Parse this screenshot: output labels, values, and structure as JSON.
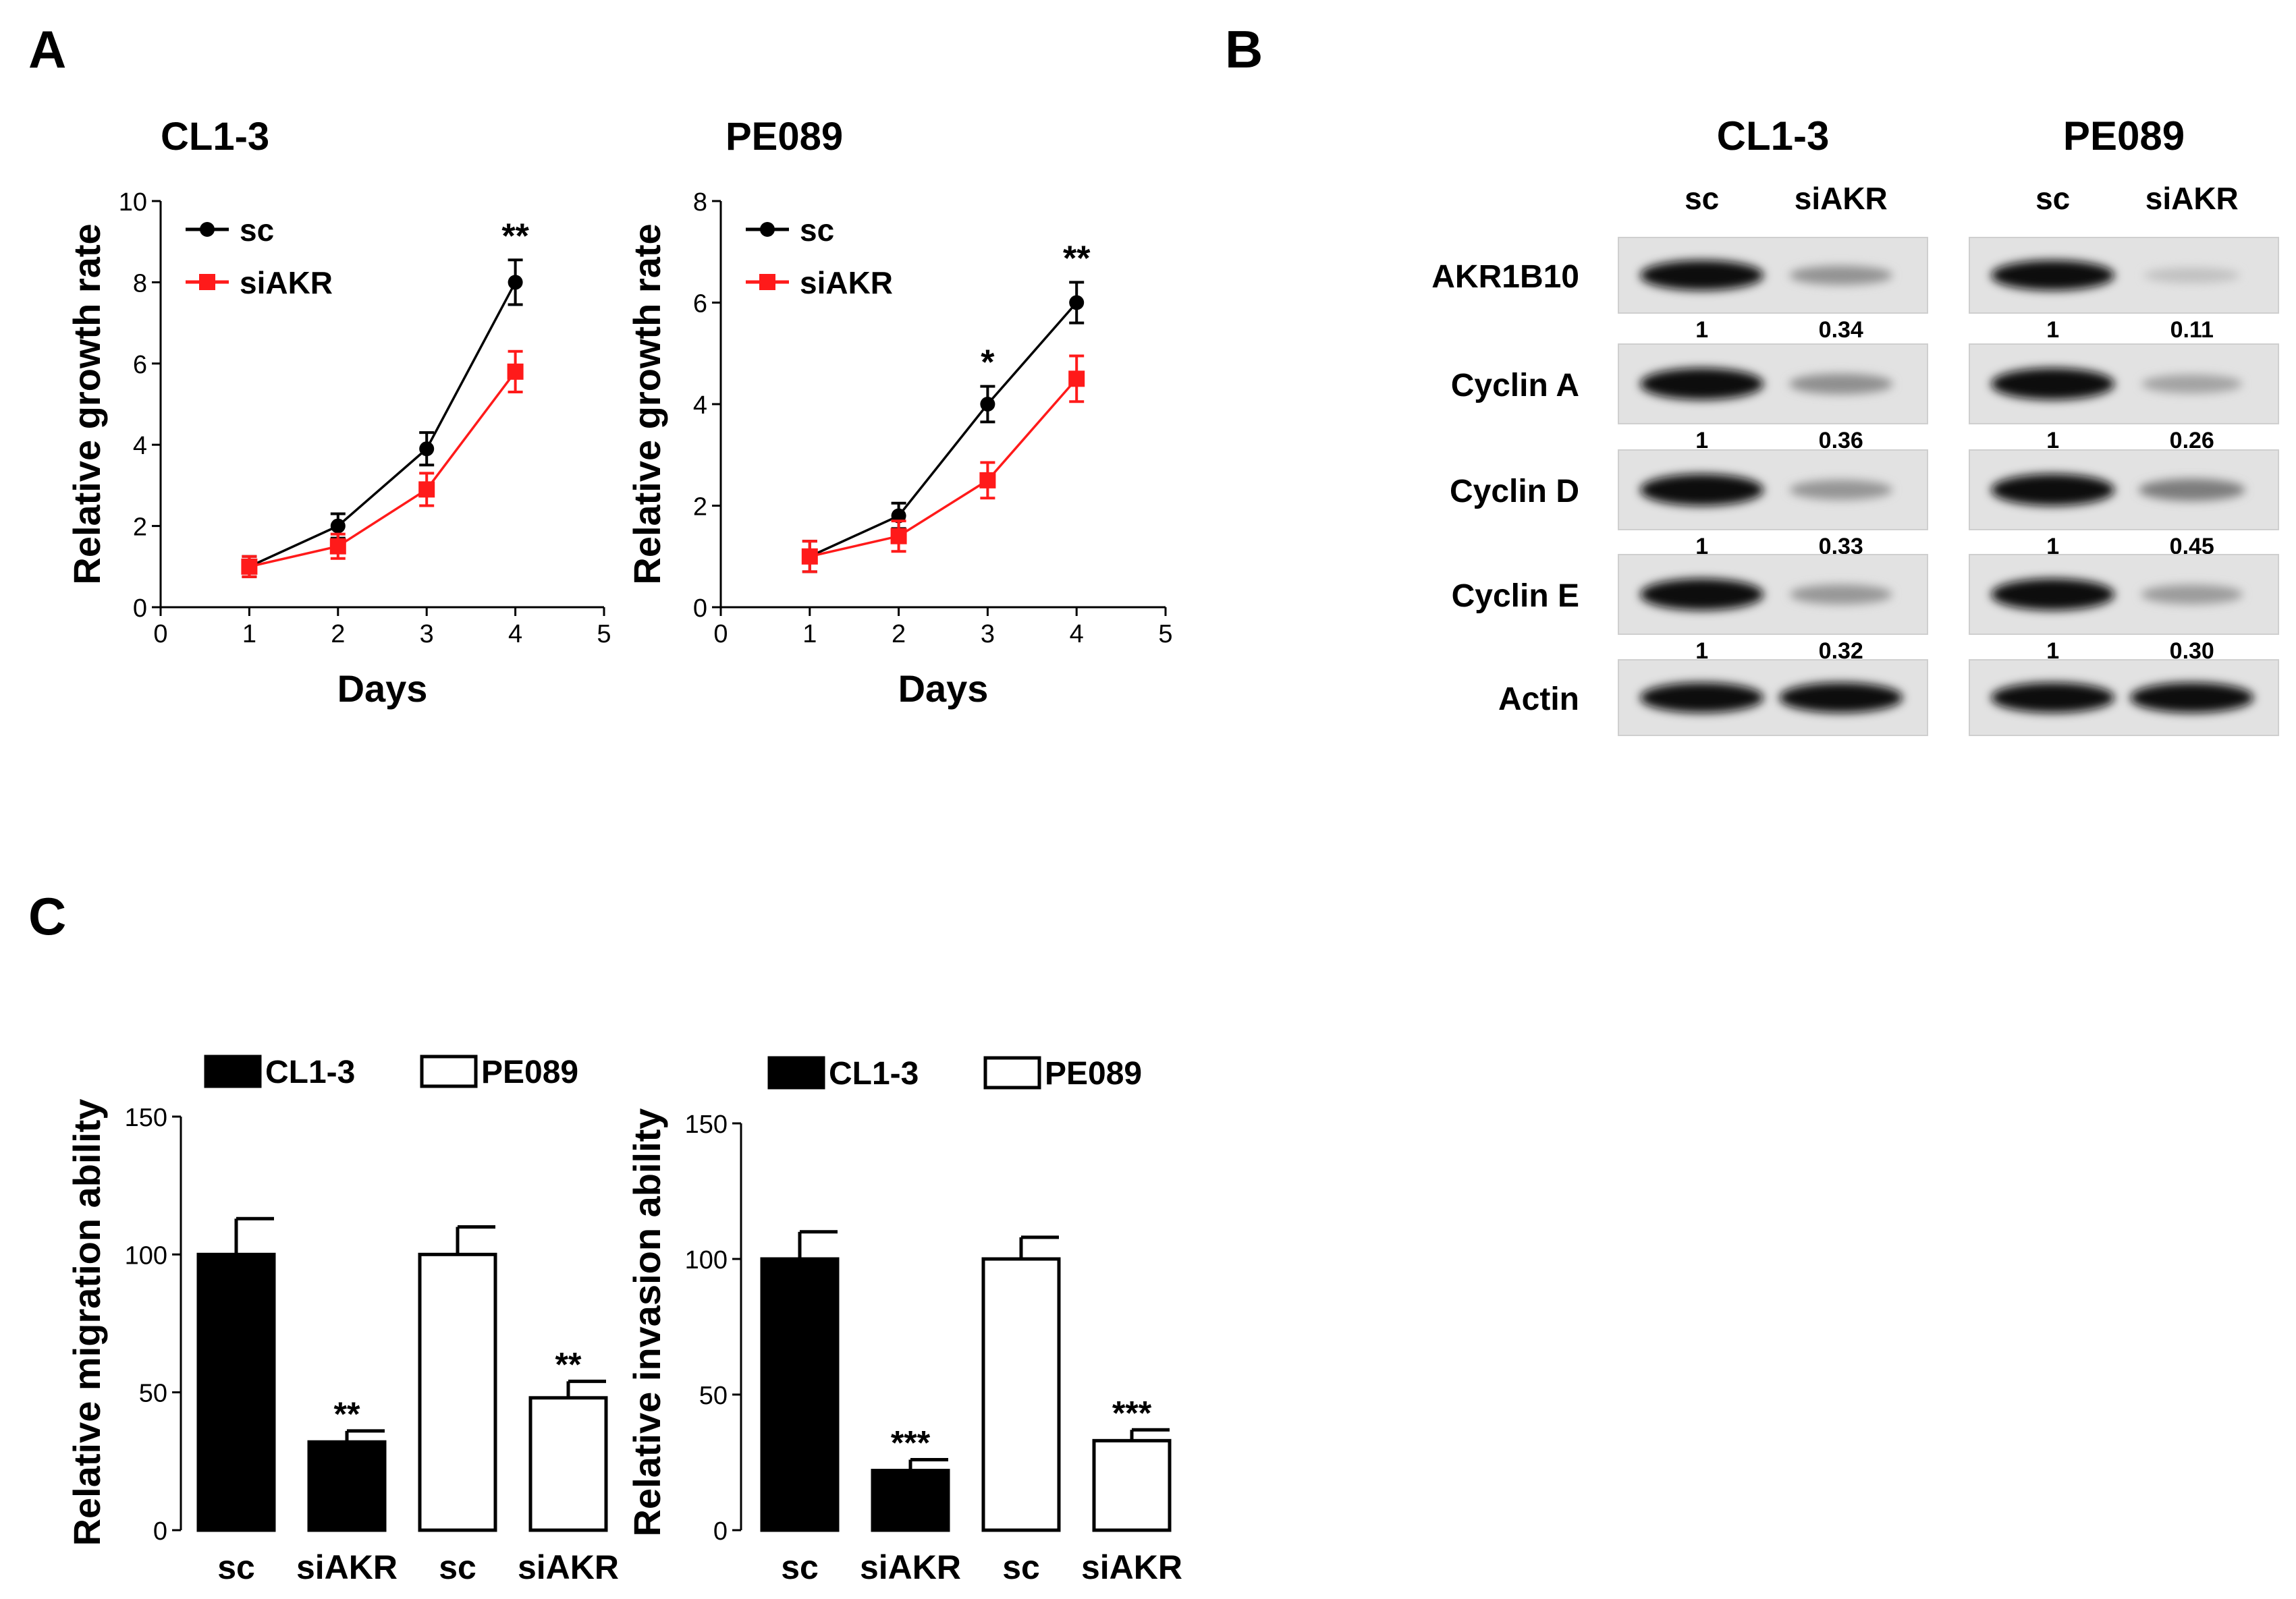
{
  "panel_labels": {
    "a": "A",
    "b": "B",
    "c": "C"
  },
  "colors": {
    "sc": "#000000",
    "siAKR": "#ff1a1a",
    "cl13_fill": "#000000",
    "pe089_fill": "#ffffff"
  },
  "chart_data": [
    {
      "id": "growth-cl13",
      "type": "line",
      "title": "CL1-3",
      "xlabel": "Days",
      "ylabel": "Relative growth rate",
      "xlim": [
        0,
        5
      ],
      "ylim": [
        0,
        10
      ],
      "xticks": [
        "0",
        "1",
        "2",
        "3",
        "4",
        "5"
      ],
      "yticks": [
        "0",
        "2",
        "4",
        "6",
        "8",
        "10"
      ],
      "legend": [
        "sc",
        "siAKR"
      ],
      "series": [
        {
          "name": "sc",
          "x": [
            1,
            2,
            3,
            4
          ],
          "y": [
            1.0,
            2.0,
            3.9,
            8.0
          ],
          "err": [
            0.25,
            0.3,
            0.4,
            0.55
          ]
        },
        {
          "name": "siAKR",
          "x": [
            1,
            2,
            3,
            4
          ],
          "y": [
            1.0,
            1.5,
            2.9,
            5.8
          ],
          "err": [
            0.25,
            0.3,
            0.4,
            0.5
          ]
        }
      ],
      "annotations": [
        {
          "x": 4,
          "text": "**"
        }
      ]
    },
    {
      "id": "growth-pe089",
      "type": "line",
      "title": "PE089",
      "xlabel": "Days",
      "ylabel": "Relative growth rate",
      "xlim": [
        0,
        5
      ],
      "ylim": [
        0,
        8
      ],
      "xticks": [
        "0",
        "1",
        "2",
        "3",
        "4",
        "5"
      ],
      "yticks": [
        "0",
        "2",
        "4",
        "6",
        "8"
      ],
      "legend": [
        "sc",
        "siAKR"
      ],
      "series": [
        {
          "name": "sc",
          "x": [
            1,
            2,
            3,
            4
          ],
          "y": [
            1.0,
            1.8,
            4.0,
            6.0
          ],
          "err": [
            0.3,
            0.25,
            0.35,
            0.4
          ]
        },
        {
          "name": "siAKR",
          "x": [
            1,
            2,
            3,
            4
          ],
          "y": [
            1.0,
            1.4,
            2.5,
            4.5
          ],
          "err": [
            0.3,
            0.3,
            0.35,
            0.45
          ]
        }
      ],
      "annotations": [
        {
          "x": 3,
          "text": "*"
        },
        {
          "x": 4,
          "text": "**"
        }
      ]
    },
    {
      "id": "migration",
      "type": "bar",
      "ylabel": "Relative migration ability",
      "ylim": [
        0,
        150
      ],
      "yticks": [
        "0",
        "50",
        "100",
        "150"
      ],
      "categories": [
        "sc",
        "siAKR",
        "sc",
        "siAKR"
      ],
      "groups": [
        "CL1-3",
        "CL1-3",
        "PE089",
        "PE089"
      ],
      "values": [
        100,
        32,
        100,
        48
      ],
      "errors": [
        13,
        4,
        10,
        6
      ],
      "stars": [
        "",
        "**",
        "",
        "**"
      ],
      "legend": [
        "CL1-3",
        "PE089"
      ]
    },
    {
      "id": "invasion",
      "type": "bar",
      "ylabel": "Relative invasion ability",
      "ylim": [
        0,
        150
      ],
      "yticks": [
        "0",
        "50",
        "100",
        "150"
      ],
      "categories": [
        "sc",
        "siAKR",
        "sc",
        "siAKR"
      ],
      "groups": [
        "CL1-3",
        "CL1-3",
        "PE089",
        "PE089"
      ],
      "values": [
        100,
        22,
        100,
        33
      ],
      "errors": [
        10,
        4,
        8,
        4
      ],
      "stars": [
        "",
        "***",
        "",
        "***"
      ],
      "legend": [
        "CL1-3",
        "PE089"
      ]
    }
  ],
  "western": {
    "cell_lines": [
      "CL1-3",
      "PE089"
    ],
    "lanes": [
      "sc",
      "siAKR"
    ],
    "proteins": [
      {
        "name": "AKR1B10",
        "cl13": [
          "1",
          "0.34"
        ],
        "pe089": [
          "1",
          "0.11"
        ],
        "cl13_int": [
          1.0,
          0.34
        ],
        "pe089_int": [
          1.0,
          0.11
        ]
      },
      {
        "name": "Cyclin A",
        "cl13": [
          "1",
          "0.36"
        ],
        "pe089": [
          "1",
          "0.26"
        ],
        "cl13_int": [
          1.0,
          0.36
        ],
        "pe089_int": [
          1.0,
          0.26
        ]
      },
      {
        "name": "Cyclin D",
        "cl13": [
          "1",
          "0.33"
        ],
        "pe089": [
          "1",
          "0.45"
        ],
        "cl13_int": [
          1.0,
          0.33
        ],
        "pe089_int": [
          1.0,
          0.45
        ]
      },
      {
        "name": "Cyclin E",
        "cl13": [
          "1",
          "0.32"
        ],
        "pe089": [
          "1",
          "0.30"
        ],
        "cl13_int": [
          1.0,
          0.32
        ],
        "pe089_int": [
          1.0,
          0.3
        ]
      },
      {
        "name": "Actin",
        "cl13": null,
        "pe089": null,
        "cl13_int": [
          1.0,
          1.0
        ],
        "pe089_int": [
          1.0,
          1.0
        ]
      }
    ]
  }
}
